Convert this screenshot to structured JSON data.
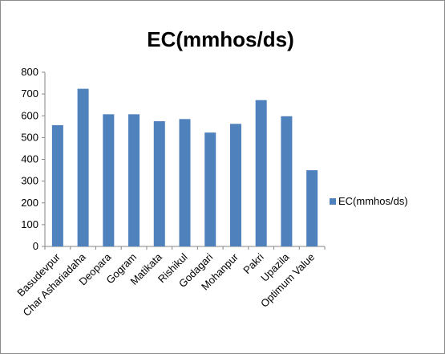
{
  "chart_data": {
    "type": "bar",
    "title": "EC(mmhos/ds)",
    "xlabel": "",
    "ylabel": "",
    "ylim": [
      0,
      800
    ],
    "yticks": [
      0,
      100,
      200,
      300,
      400,
      500,
      600,
      700,
      800
    ],
    "grid": false,
    "legend_position": "right",
    "categories": [
      "Basudevpur",
      "Char Ashariadaha",
      "Deopara",
      "Gogram",
      "Matikata",
      "Rishikul",
      "Godagari",
      "Mohanpur",
      "Pakri",
      "Upazila",
      "Optimum Value"
    ],
    "series": [
      {
        "name": "EC(mmhos/ds)",
        "color": "#4F81BD",
        "values": [
          557,
          724,
          607,
          607,
          575,
          585,
          523,
          563,
          672,
          598,
          350
        ]
      }
    ]
  }
}
